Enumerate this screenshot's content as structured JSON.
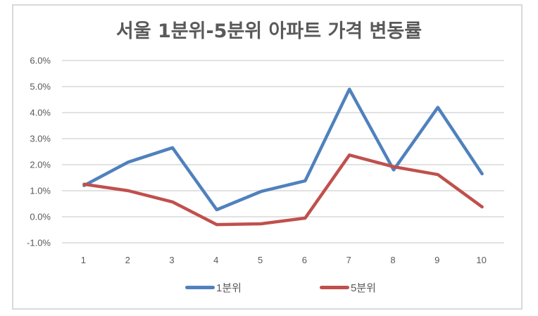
{
  "chart_data": {
    "type": "line",
    "title": "서울 1분위-5분위 아파트 가격 변동률",
    "xlabel": "",
    "ylabel": "",
    "categories": [
      "1",
      "2",
      "3",
      "4",
      "5",
      "6",
      "7",
      "8",
      "9",
      "10"
    ],
    "series": [
      {
        "name": "1분위",
        "color": "#4f81bd",
        "values": [
          1.2,
          2.1,
          2.65,
          0.27,
          0.97,
          1.38,
          4.9,
          1.8,
          4.2,
          1.65
        ]
      },
      {
        "name": "5분위",
        "color": "#c0504d",
        "values": [
          1.25,
          1.0,
          0.57,
          -0.3,
          -0.27,
          -0.05,
          2.37,
          1.92,
          1.62,
          0.38
        ]
      }
    ],
    "ylim": [
      -1.0,
      6.0
    ],
    "yticks": [
      "6.0%",
      "5.0%",
      "4.0%",
      "3.0%",
      "2.0%",
      "1.0%",
      "0.0%",
      "-1.0%"
    ],
    "grid": true,
    "legend_position": "bottom"
  },
  "title": "서울 1분위-5분위 아파트 가격 변동률",
  "legend": {
    "items": [
      {
        "label": "1분위",
        "color": "#4f81bd"
      },
      {
        "label": "5분위",
        "color": "#c0504d"
      }
    ]
  }
}
